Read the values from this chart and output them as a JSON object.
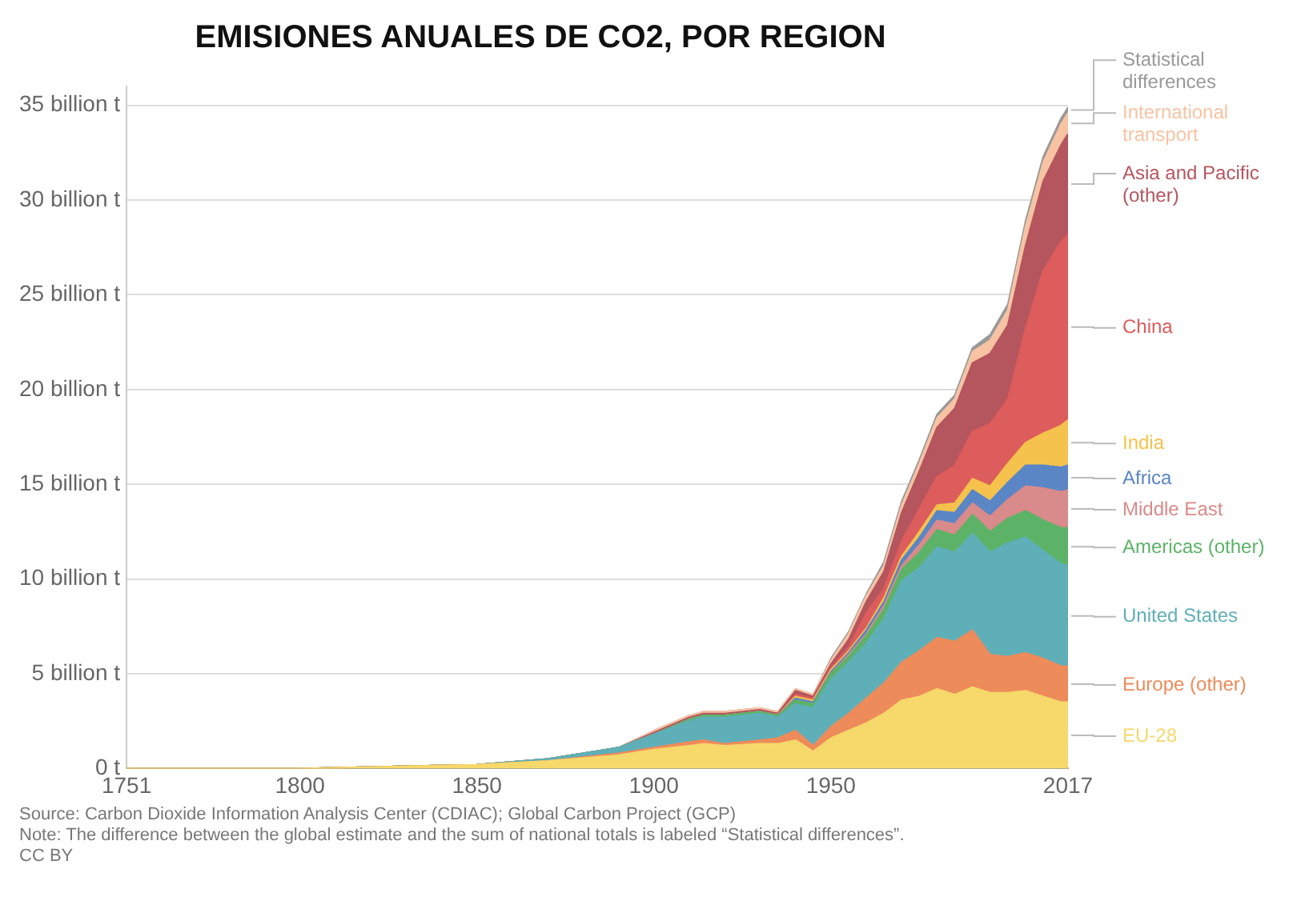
{
  "chart_data": {
    "type": "area",
    "title": "EMISIONES ANUALES DE CO2, POR REGION",
    "stacked": true,
    "grid": "y",
    "legend": false,
    "marker": "none",
    "x": [
      1751,
      1800,
      1850,
      1870,
      1890,
      1900,
      1910,
      1914,
      1920,
      1930,
      1935,
      1940,
      1945,
      1950,
      1955,
      1960,
      1965,
      1970,
      1975,
      1980,
      1985,
      1990,
      1995,
      2000,
      2005,
      2010,
      2015,
      2017
    ],
    "xlim": [
      1751,
      2017
    ],
    "xticks": [
      1751,
      1800,
      1850,
      1900,
      1950,
      2017
    ],
    "ylim": [
      0,
      36
    ],
    "yticks": [
      {
        "value": 0,
        "label": "0 t"
      },
      {
        "value": 5,
        "label": "5 billion t"
      },
      {
        "value": 10,
        "label": "10 billion t"
      },
      {
        "value": 15,
        "label": "15 billion t"
      },
      {
        "value": 20,
        "label": "20 billion t"
      },
      {
        "value": 25,
        "label": "25 billion t"
      },
      {
        "value": 30,
        "label": "30 billion t"
      },
      {
        "value": 35,
        "label": "35 billion t"
      }
    ],
    "series": [
      {
        "name": "EU-28",
        "color": "#f6d86b",
        "values": [
          0,
          0,
          0.2,
          0.4,
          0.7,
          1.0,
          1.2,
          1.3,
          1.2,
          1.3,
          1.3,
          1.5,
          0.9,
          1.6,
          2.0,
          2.4,
          2.9,
          3.6,
          3.8,
          4.2,
          3.9,
          4.3,
          4.0,
          4.0,
          4.1,
          3.8,
          3.5,
          3.5
        ]
      },
      {
        "name": "Europe (other)",
        "color": "#ee8b5a",
        "values": [
          0,
          0,
          0,
          0,
          0.1,
          0.1,
          0.2,
          0.2,
          0.1,
          0.2,
          0.3,
          0.5,
          0.3,
          0.6,
          0.9,
          1.3,
          1.6,
          2.0,
          2.4,
          2.7,
          2.8,
          3.0,
          2.0,
          1.9,
          2.0,
          2.0,
          1.9,
          1.9
        ]
      },
      {
        "name": "United States",
        "color": "#5fafb8",
        "values": [
          0,
          0,
          0,
          0.1,
          0.3,
          0.7,
          1.1,
          1.2,
          1.4,
          1.4,
          1.1,
          1.4,
          2.0,
          2.5,
          2.7,
          2.9,
          3.4,
          4.3,
          4.4,
          4.8,
          4.7,
          5.1,
          5.4,
          6.0,
          6.1,
          5.7,
          5.4,
          5.3
        ]
      },
      {
        "name": "Americas (other)",
        "color": "#5cb367",
        "values": [
          0,
          0,
          0,
          0,
          0,
          0,
          0.1,
          0.1,
          0.1,
          0.1,
          0.1,
          0.2,
          0.2,
          0.3,
          0.3,
          0.4,
          0.5,
          0.6,
          0.8,
          0.9,
          0.9,
          1.0,
          1.1,
          1.3,
          1.4,
          1.6,
          1.9,
          2.0
        ]
      },
      {
        "name": "Middle East",
        "color": "#d98a8a",
        "values": [
          0,
          0,
          0,
          0,
          0,
          0,
          0,
          0,
          0,
          0,
          0,
          0,
          0,
          0,
          0.1,
          0.1,
          0.2,
          0.2,
          0.4,
          0.5,
          0.6,
          0.6,
          0.8,
          1.0,
          1.3,
          1.7,
          1.9,
          2.0
        ]
      },
      {
        "name": "Africa",
        "color": "#5a86c6",
        "values": [
          0,
          0,
          0,
          0,
          0,
          0,
          0,
          0,
          0,
          0,
          0,
          0.1,
          0.1,
          0.1,
          0.1,
          0.2,
          0.2,
          0.3,
          0.4,
          0.5,
          0.6,
          0.7,
          0.8,
          0.9,
          1.1,
          1.2,
          1.3,
          1.3
        ]
      },
      {
        "name": "India",
        "color": "#f5c24d",
        "values": [
          0,
          0,
          0,
          0,
          0,
          0,
          0,
          0,
          0,
          0,
          0,
          0.1,
          0.1,
          0.1,
          0.1,
          0.1,
          0.2,
          0.2,
          0.3,
          0.3,
          0.5,
          0.6,
          0.8,
          1.0,
          1.2,
          1.7,
          2.2,
          2.4
        ]
      },
      {
        "name": "China",
        "color": "#dd5c5c",
        "values": [
          0,
          0,
          0,
          0,
          0,
          0,
          0,
          0,
          0,
          0,
          0,
          0.1,
          0.1,
          0.1,
          0.2,
          0.8,
          0.5,
          0.8,
          1.2,
          1.5,
          2.0,
          2.5,
          3.3,
          3.4,
          6.0,
          8.6,
          9.7,
          9.8
        ]
      },
      {
        "name": "Asia and Pacific (other)",
        "color": "#b5555e",
        "values": [
          0,
          0,
          0,
          0,
          0,
          0.1,
          0.1,
          0.1,
          0.1,
          0.1,
          0.1,
          0.2,
          0.1,
          0.2,
          0.4,
          0.6,
          0.9,
          1.5,
          2.0,
          2.6,
          3.0,
          3.6,
          3.7,
          3.9,
          4.4,
          4.7,
          5.1,
          5.3
        ]
      },
      {
        "name": "International transport",
        "color": "#f7c3a3",
        "values": [
          0,
          0,
          0,
          0,
          0,
          0.1,
          0.1,
          0.1,
          0.1,
          0.1,
          0.1,
          0.1,
          0.1,
          0.2,
          0.3,
          0.3,
          0.3,
          0.4,
          0.4,
          0.5,
          0.5,
          0.6,
          0.7,
          0.8,
          1.0,
          1.0,
          1.1,
          1.1
        ]
      },
      {
        "name": "Statistical differences",
        "color": "#999999",
        "values": [
          0,
          0,
          0,
          0,
          0,
          0,
          0,
          0,
          0,
          0,
          0,
          0,
          0,
          0.1,
          0.1,
          0.1,
          0.2,
          0.2,
          0.2,
          0.2,
          0.2,
          0.2,
          0.3,
          0.3,
          0.3,
          0.3,
          0.3,
          0.3
        ]
      }
    ],
    "annotations": [
      "Source: Carbon Dioxide Information Analysis Center (CDIAC); Global Carbon Project (GCP)",
      "Note: The difference between the global estimate and the sum of national totals is labeled “Statistical differences”.",
      "CC BY"
    ]
  }
}
